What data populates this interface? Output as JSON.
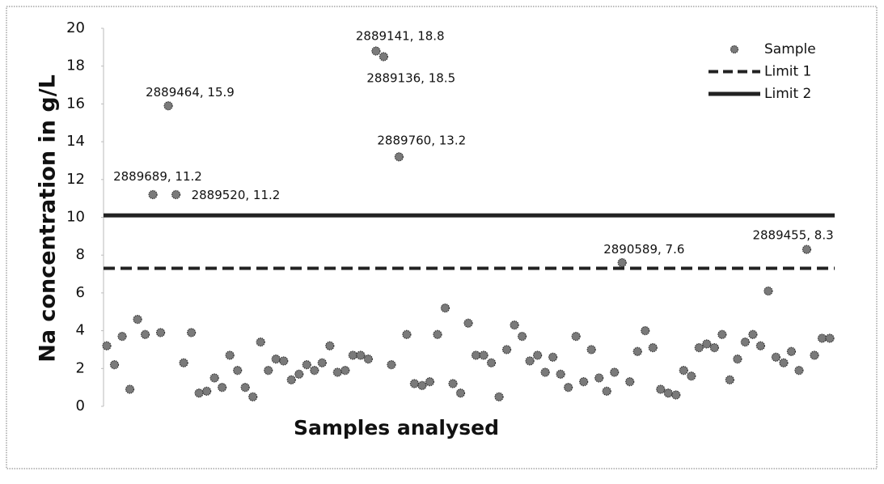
{
  "chart_data": {
    "type": "scatter",
    "ylabel": "Na concentration in g/L",
    "xlabel": "Samples analysed",
    "ylim": [
      0,
      20
    ],
    "yticks": [
      0,
      2,
      4,
      6,
      8,
      10,
      12,
      14,
      16,
      18,
      20
    ],
    "categories": [
      null,
      null,
      null,
      null,
      null,
      null,
      null,
      null,
      null,
      null,
      null,
      null,
      null,
      null,
      null,
      null,
      null,
      null,
      null,
      null,
      null,
      null,
      null,
      null,
      null,
      null,
      null,
      null,
      null,
      null,
      null,
      null,
      null,
      null,
      null,
      null,
      null,
      null,
      null,
      null,
      null,
      null,
      null,
      null,
      null,
      null,
      null,
      null,
      null,
      null,
      null,
      null,
      null,
      null,
      null,
      null,
      null,
      null,
      null,
      null,
      null,
      null,
      null,
      null,
      null,
      null,
      null,
      null,
      null,
      null,
      null,
      null,
      null,
      null,
      null,
      null,
      null,
      null,
      null,
      null,
      null,
      null,
      null,
      null,
      null,
      null,
      null,
      null,
      null,
      null,
      null,
      null,
      null,
      null,
      null
    ],
    "series": [
      {
        "name": "Sample",
        "color": "#7a7a7a",
        "values": [
          3.2,
          2.2,
          3.7,
          0.9,
          4.6,
          3.8,
          11.2,
          3.9,
          15.9,
          11.2,
          2.3,
          3.9,
          0.7,
          0.8,
          1.5,
          1.0,
          2.7,
          1.9,
          1.0,
          0.5,
          3.4,
          1.9,
          2.5,
          2.4,
          1.4,
          1.7,
          2.2,
          1.9,
          2.3,
          3.2,
          1.8,
          1.9,
          2.7,
          2.7,
          2.5,
          18.8,
          18.5,
          2.2,
          13.2,
          3.8,
          1.2,
          1.1,
          1.3,
          3.8,
          5.2,
          1.2,
          0.7,
          4.4,
          2.7,
          2.7,
          2.3,
          0.5,
          3.0,
          4.3,
          3.7,
          2.4,
          2.7,
          1.8,
          2.6,
          1.7,
          1.0,
          3.7,
          1.3,
          3.0,
          1.5,
          0.8,
          1.8,
          7.6,
          1.3,
          2.9,
          4.0,
          3.1,
          0.9,
          0.7,
          0.6,
          1.9,
          1.6,
          3.1,
          3.3,
          3.1,
          3.8,
          1.4,
          2.5,
          3.4,
          3.8,
          3.2,
          6.1,
          2.6,
          2.3,
          2.9,
          1.9,
          8.3,
          2.7,
          3.6,
          3.6
        ],
        "value_labels": [
          null,
          null,
          null,
          null,
          null,
          null,
          "2889689, 11.2",
          null,
          "2889464, 15.9",
          "2889520, 11.2",
          null,
          null,
          null,
          null,
          null,
          null,
          null,
          null,
          null,
          null,
          null,
          null,
          null,
          null,
          null,
          null,
          null,
          null,
          null,
          null,
          null,
          null,
          null,
          null,
          null,
          "2889141, 18.8",
          "2889136, 18.5",
          null,
          "2889760, 13.2",
          null,
          null,
          null,
          null,
          null,
          null,
          null,
          null,
          null,
          null,
          null,
          null,
          null,
          null,
          null,
          null,
          null,
          null,
          null,
          null,
          null,
          null,
          null,
          null,
          null,
          null,
          null,
          null,
          "2890589, 7.6",
          null,
          null,
          null,
          null,
          null,
          null,
          null,
          null,
          null,
          null,
          null,
          null,
          null,
          null,
          null,
          null,
          null,
          null,
          null,
          null,
          null,
          null,
          null,
          "2889455, 8.3",
          null,
          null,
          null
        ]
      },
      {
        "name": "Limit 1",
        "color": "#222222",
        "value": 7.3,
        "style": "dashed"
      },
      {
        "name": "Limit 2",
        "color": "#222222",
        "value": 10.1,
        "style": "solid"
      }
    ],
    "legend": "top-right"
  }
}
